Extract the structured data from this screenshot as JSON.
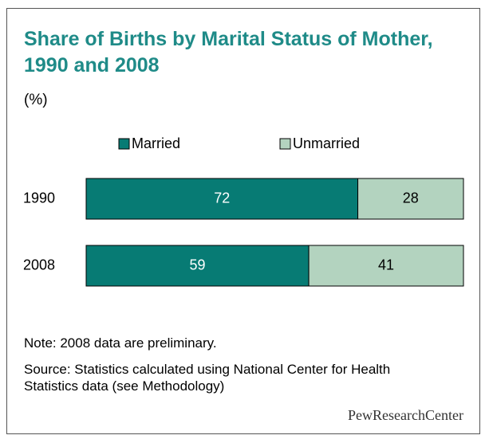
{
  "chart_data": {
    "type": "bar",
    "orientation": "horizontal",
    "stacked": true,
    "title": "Share of Births by Marital Status of Mother, 1990 and 2008",
    "subtitle": "(%)",
    "categories": [
      "1990",
      "2008"
    ],
    "series": [
      {
        "name": "Married",
        "color": "#077b74",
        "values": [
          72,
          59
        ]
      },
      {
        "name": "Unmarried",
        "color": "#b3d3bf",
        "values": [
          28,
          41
        ]
      }
    ],
    "xlim": [
      0,
      100
    ],
    "note": "Note: 2008 data are preliminary.",
    "source": "Source: Statistics calculated using National Center for Health Statistics data (see Methodology)",
    "credit": "PewResearchCenter"
  }
}
